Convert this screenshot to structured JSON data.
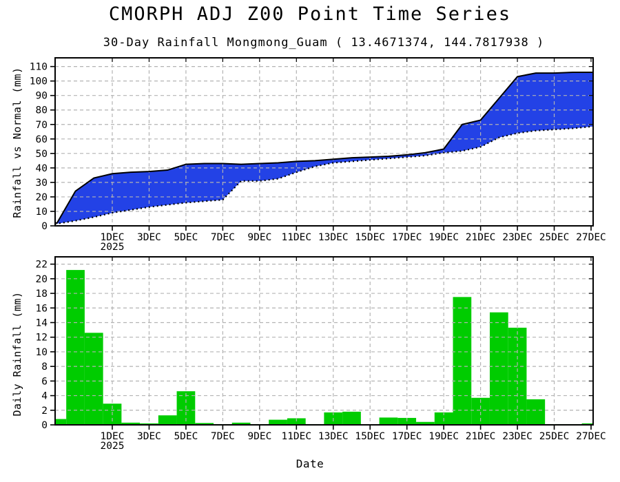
{
  "page": {
    "title": "CMORPH ADJ Z00 Point Time Series",
    "subtitle": "30-Day Rainfall Mongmong_Guam ( 13.4671374, 144.7817938 )"
  },
  "colors": {
    "band_fill": "#2342e6",
    "bar_fill": "#00cc00",
    "grid": "#b3b3b3",
    "axis": "#000000"
  },
  "chart_data": [
    {
      "type": "area",
      "panel": "top",
      "ylabel": "Rainfall vs Normal (mm)",
      "ylim": [
        0,
        116
      ],
      "yticks": [
        0,
        10,
        20,
        30,
        40,
        50,
        60,
        70,
        80,
        90,
        100,
        110
      ],
      "grid": "on",
      "legend": "none",
      "dates": [
        "28NOV",
        "29NOV",
        "30NOV",
        "1DEC",
        "2DEC",
        "3DEC",
        "4DEC",
        "5DEC",
        "6DEC",
        "7DEC",
        "8DEC",
        "9DEC",
        "10DEC",
        "11DEC",
        "12DEC",
        "13DEC",
        "14DEC",
        "15DEC",
        "16DEC",
        "17DEC",
        "18DEC",
        "19DEC",
        "20DEC",
        "21DEC",
        "22DEC",
        "23DEC",
        "24DEC",
        "25DEC",
        "26DEC",
        "27DEC"
      ],
      "x_tick_indices": [
        3,
        5,
        7,
        9,
        11,
        13,
        15,
        17,
        19,
        21,
        23,
        25,
        27,
        29
      ],
      "x_tick_labels": [
        "1DEC",
        "3DEC",
        "5DEC",
        "7DEC",
        "9DEC",
        "11DEC",
        "13DEC",
        "15DEC",
        "17DEC",
        "19DEC",
        "21DEC",
        "23DEC",
        "25DEC",
        "27DEC"
      ],
      "x_first_tick_sublabel": "2025",
      "fill_between": true,
      "series": [
        {
          "name": "upper_solid_30day_rainfall",
          "line": "solid",
          "values": [
            2,
            24,
            33,
            36,
            37,
            37.5,
            38.5,
            42.5,
            43,
            43,
            42.5,
            43,
            43.5,
            44.5,
            45,
            46,
            47,
            47.5,
            48,
            49,
            50.5,
            53,
            70,
            73,
            88,
            103,
            105.5,
            105.5,
            106,
            106
          ]
        },
        {
          "name": "lower_dotted_30day_normal",
          "line": "dotted",
          "values": [
            1.5,
            3.5,
            6,
            9,
            11,
            13,
            14.5,
            16,
            17,
            18,
            31,
            31,
            32.5,
            37,
            41,
            43.5,
            44.5,
            45.5,
            46.5,
            47.5,
            48.5,
            50.5,
            51.7,
            54.5,
            61,
            64,
            65.7,
            66.5,
            67.3,
            68.5
          ]
        }
      ]
    },
    {
      "type": "bar",
      "panel": "bottom",
      "ylabel": "Daily Rainfall (mm)",
      "xlabel": "Date",
      "ylim": [
        0,
        23
      ],
      "yticks": [
        0,
        2,
        4,
        6,
        8,
        10,
        12,
        14,
        16,
        18,
        20,
        22
      ],
      "grid": "on",
      "legend": "none",
      "dates": [
        "28NOV",
        "29NOV",
        "30NOV",
        "1DEC",
        "2DEC",
        "3DEC",
        "4DEC",
        "5DEC",
        "6DEC",
        "7DEC",
        "8DEC",
        "9DEC",
        "10DEC",
        "11DEC",
        "12DEC",
        "13DEC",
        "14DEC",
        "15DEC",
        "16DEC",
        "17DEC",
        "18DEC",
        "19DEC",
        "20DEC",
        "21DEC",
        "22DEC",
        "23DEC",
        "24DEC",
        "25DEC",
        "26DEC",
        "27DEC"
      ],
      "x_tick_indices": [
        3,
        5,
        7,
        9,
        11,
        13,
        15,
        17,
        19,
        21,
        23,
        25,
        27,
        29
      ],
      "x_tick_labels": [
        "1DEC",
        "3DEC",
        "5DEC",
        "7DEC",
        "9DEC",
        "11DEC",
        "13DEC",
        "15DEC",
        "17DEC",
        "19DEC",
        "21DEC",
        "23DEC",
        "25DEC",
        "27DEC"
      ],
      "x_first_tick_sublabel": "2025",
      "values": [
        0.8,
        21.2,
        12.6,
        2.9,
        0.3,
        0.2,
        1.3,
        4.6,
        0.25,
        0.1,
        0.3,
        0.1,
        0.7,
        0.9,
        0.1,
        1.7,
        1.8,
        0.05,
        1.0,
        0.95,
        0.4,
        1.7,
        17.5,
        3.7,
        15.4,
        13.3,
        3.5,
        0.1,
        0.1,
        0.2
      ]
    }
  ]
}
